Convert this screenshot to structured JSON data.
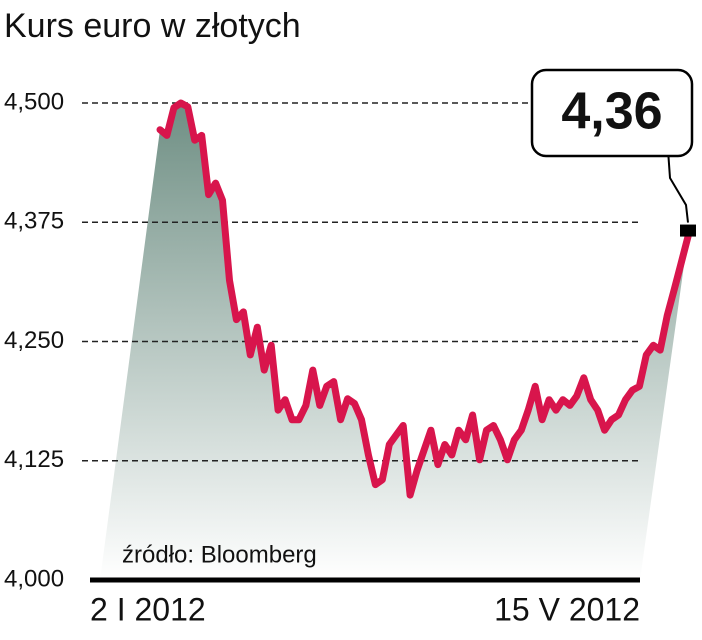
{
  "chart_data": {
    "type": "line",
    "title": "Kurs euro w złotych",
    "source": "źródło: Bloomberg",
    "categories": [
      "2 I 2012",
      null,
      null,
      null,
      null,
      null,
      null,
      null,
      null,
      null,
      null,
      null,
      null,
      null,
      null,
      null,
      null,
      null,
      null,
      null,
      null,
      null,
      null,
      null,
      null,
      null,
      null,
      null,
      null,
      null,
      null,
      null,
      null,
      null,
      null,
      null,
      null,
      null,
      null,
      null,
      null,
      null,
      null,
      null,
      null,
      null,
      null,
      null,
      null,
      null,
      null,
      null,
      null,
      null,
      null,
      null,
      null,
      null,
      null,
      null,
      null,
      null,
      null,
      null,
      null,
      null,
      null,
      null,
      null,
      null,
      null,
      null,
      null,
      null,
      null,
      null,
      "15 V 2012"
    ],
    "series": [
      {
        "color": "#d8154c",
        "values": [
          4.472,
          4.466,
          4.495,
          4.5,
          4.496,
          4.461,
          4.466,
          4.404,
          4.416,
          4.398,
          4.314,
          4.273,
          4.281,
          4.236,
          4.265,
          4.22,
          4.246,
          4.178,
          4.189,
          4.168,
          4.168,
          4.183,
          4.22,
          4.183,
          4.203,
          4.208,
          4.168,
          4.19,
          4.185,
          4.168,
          4.131,
          4.1,
          4.105,
          4.142,
          4.152,
          4.162,
          4.089,
          4.115,
          4.136,
          4.157,
          4.121,
          4.142,
          4.131,
          4.157,
          4.147,
          4.173,
          4.126,
          4.157,
          4.162,
          4.147,
          4.126,
          4.147,
          4.157,
          4.178,
          4.203,
          4.168,
          4.189,
          4.178,
          4.189,
          4.183,
          4.193,
          4.212,
          4.189,
          4.178,
          4.157,
          4.168,
          4.173,
          4.189,
          4.199,
          4.203,
          4.236,
          4.246,
          4.241,
          4.277,
          4.304,
          4.332,
          4.36
        ],
        "value_labels": [
          null,
          null,
          null,
          null,
          null,
          null,
          null,
          null,
          null,
          null,
          null,
          null,
          null,
          null,
          null,
          null,
          null,
          null,
          null,
          null,
          null,
          null,
          null,
          null,
          null,
          null,
          null,
          null,
          null,
          null,
          null,
          null,
          null,
          null,
          null,
          null,
          null,
          null,
          null,
          null,
          null,
          null,
          null,
          null,
          null,
          null,
          null,
          null,
          null,
          null,
          null,
          null,
          null,
          null,
          null,
          null,
          null,
          null,
          null,
          null,
          null,
          null,
          null,
          null,
          null,
          null,
          null,
          null,
          null,
          null,
          null,
          null,
          null,
          null,
          null,
          null,
          "4,36"
        ]
      }
    ],
    "ylim": [
      4.0,
      4.5
    ],
    "yticks": [
      {
        "value": 4.0,
        "label": "4,000"
      },
      {
        "value": 4.125,
        "label": "4,125"
      },
      {
        "value": 4.25,
        "label": "4,250"
      },
      {
        "value": 4.375,
        "label": "4,375"
      },
      {
        "value": 4.5,
        "label": "4,500"
      }
    ],
    "grid": true
  }
}
